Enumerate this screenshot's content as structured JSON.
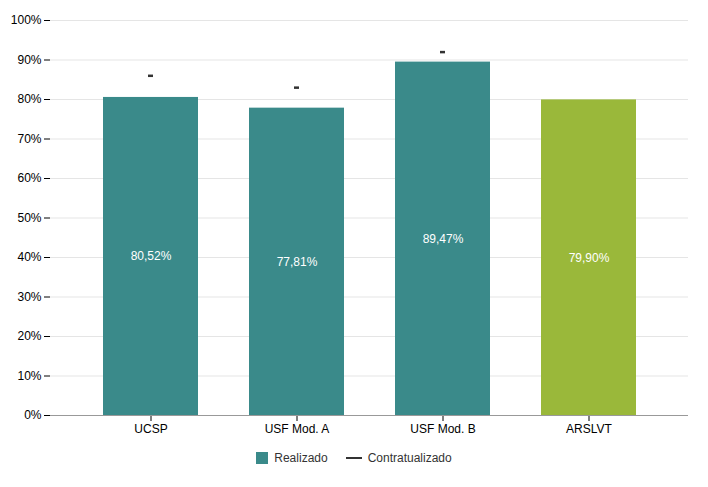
{
  "chart_data": {
    "type": "bar",
    "categories": [
      "UCSP",
      "USF Mod. A",
      "USF Mod. B",
      "ARSLVT"
    ],
    "series": [
      {
        "name": "Realizado",
        "type": "bar",
        "color": "#3a8a8a",
        "colors": [
          "#3a8a8a",
          "#3a8a8a",
          "#3a8a8a",
          "#9ab83a"
        ],
        "values": [
          80.52,
          77.81,
          89.47,
          79.9
        ],
        "value_labels": [
          "80,52%",
          "77,81%",
          "89,47%",
          "79,90%"
        ]
      },
      {
        "name": "Contratualizado",
        "type": "tick",
        "color": "#333333",
        "values": [
          86.0,
          83.0,
          92.0,
          null
        ]
      }
    ],
    "data_labels": true,
    "ylim": [
      0,
      100
    ],
    "yticks": [
      {
        "value": 0,
        "label": "0%"
      },
      {
        "value": 10,
        "label": "10%"
      },
      {
        "value": 20,
        "label": "20%"
      },
      {
        "value": 30,
        "label": "30%"
      },
      {
        "value": 40,
        "label": "40%"
      },
      {
        "value": 50,
        "label": "50%"
      },
      {
        "value": 60,
        "label": "60%"
      },
      {
        "value": 70,
        "label": "70%"
      },
      {
        "value": 80,
        "label": "80%"
      },
      {
        "value": 90,
        "label": "90%"
      },
      {
        "value": 100,
        "label": "100%"
      }
    ],
    "grid": true,
    "legend": "bottom"
  }
}
